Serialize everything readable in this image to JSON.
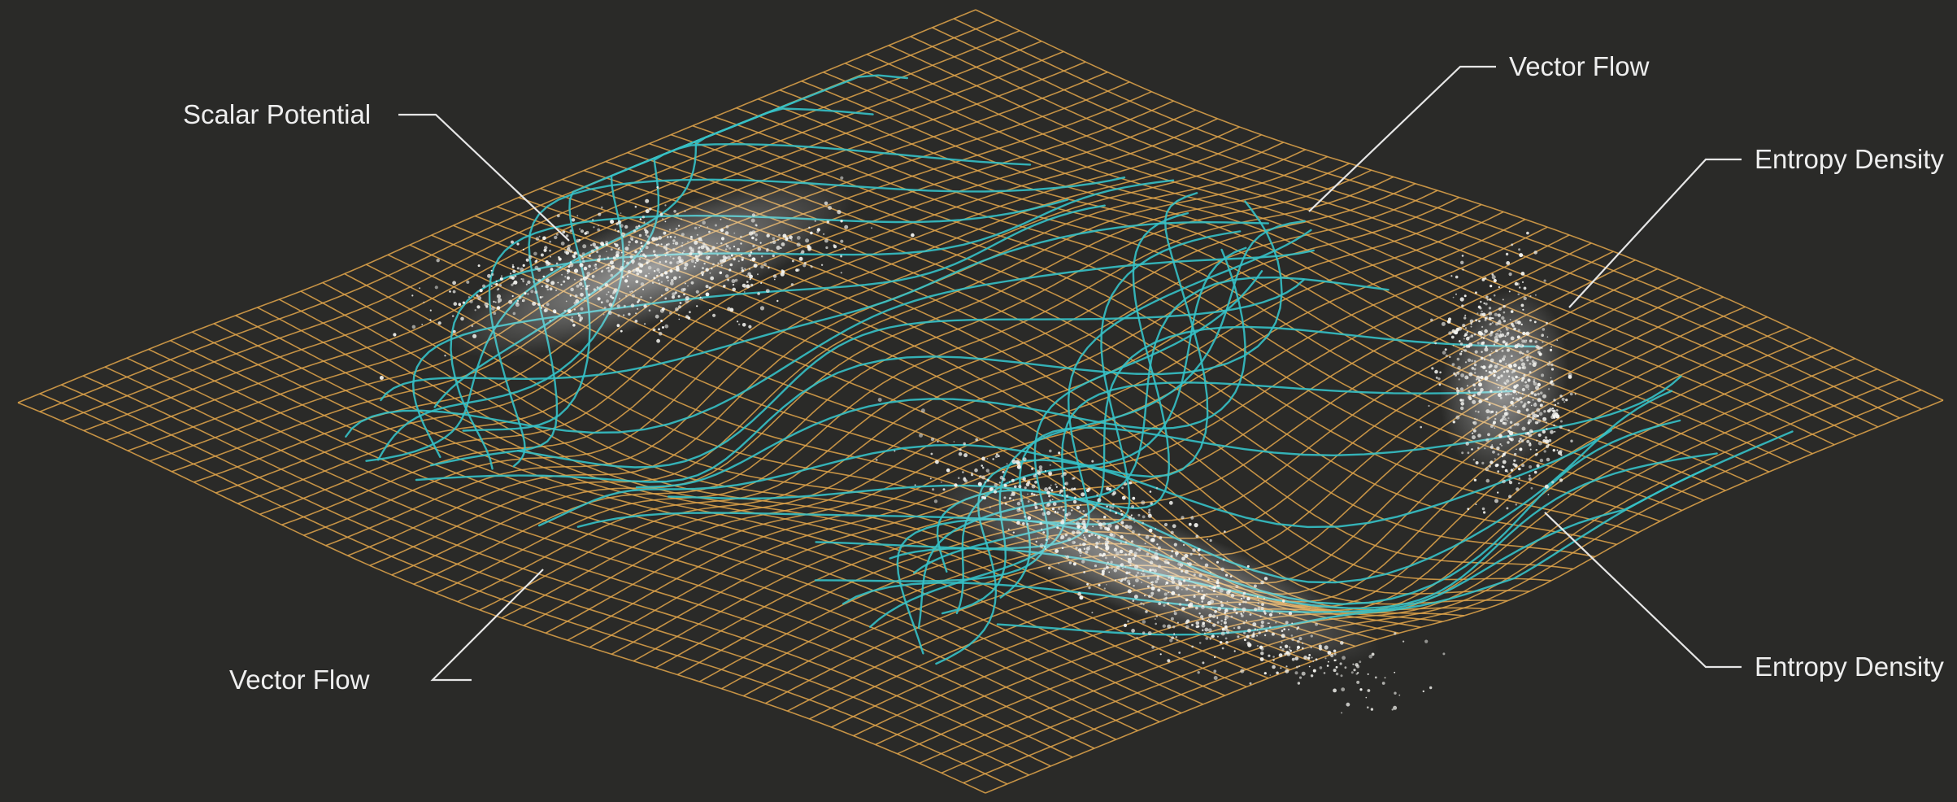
{
  "labels": {
    "scalar_potential": "Scalar Potential",
    "vector_flow_top": "Vector Flow",
    "entropy_density_top": "Entropy Density",
    "vector_flow_bottom": "Vector Flow",
    "entropy_density_bottom": "Entropy Density"
  },
  "colors": {
    "background": "#2a2a28",
    "scalar_grid": "#e0a54a",
    "vector_flow": "#35c1c7",
    "entropy_particles": "#f4f4f0",
    "leader_lines": "#e6e6e6"
  },
  "icons": {
    "mesh": "orange-wireframe-surface",
    "streamlines": "teal-flow-lines",
    "particles": "white-particle-cloud"
  }
}
